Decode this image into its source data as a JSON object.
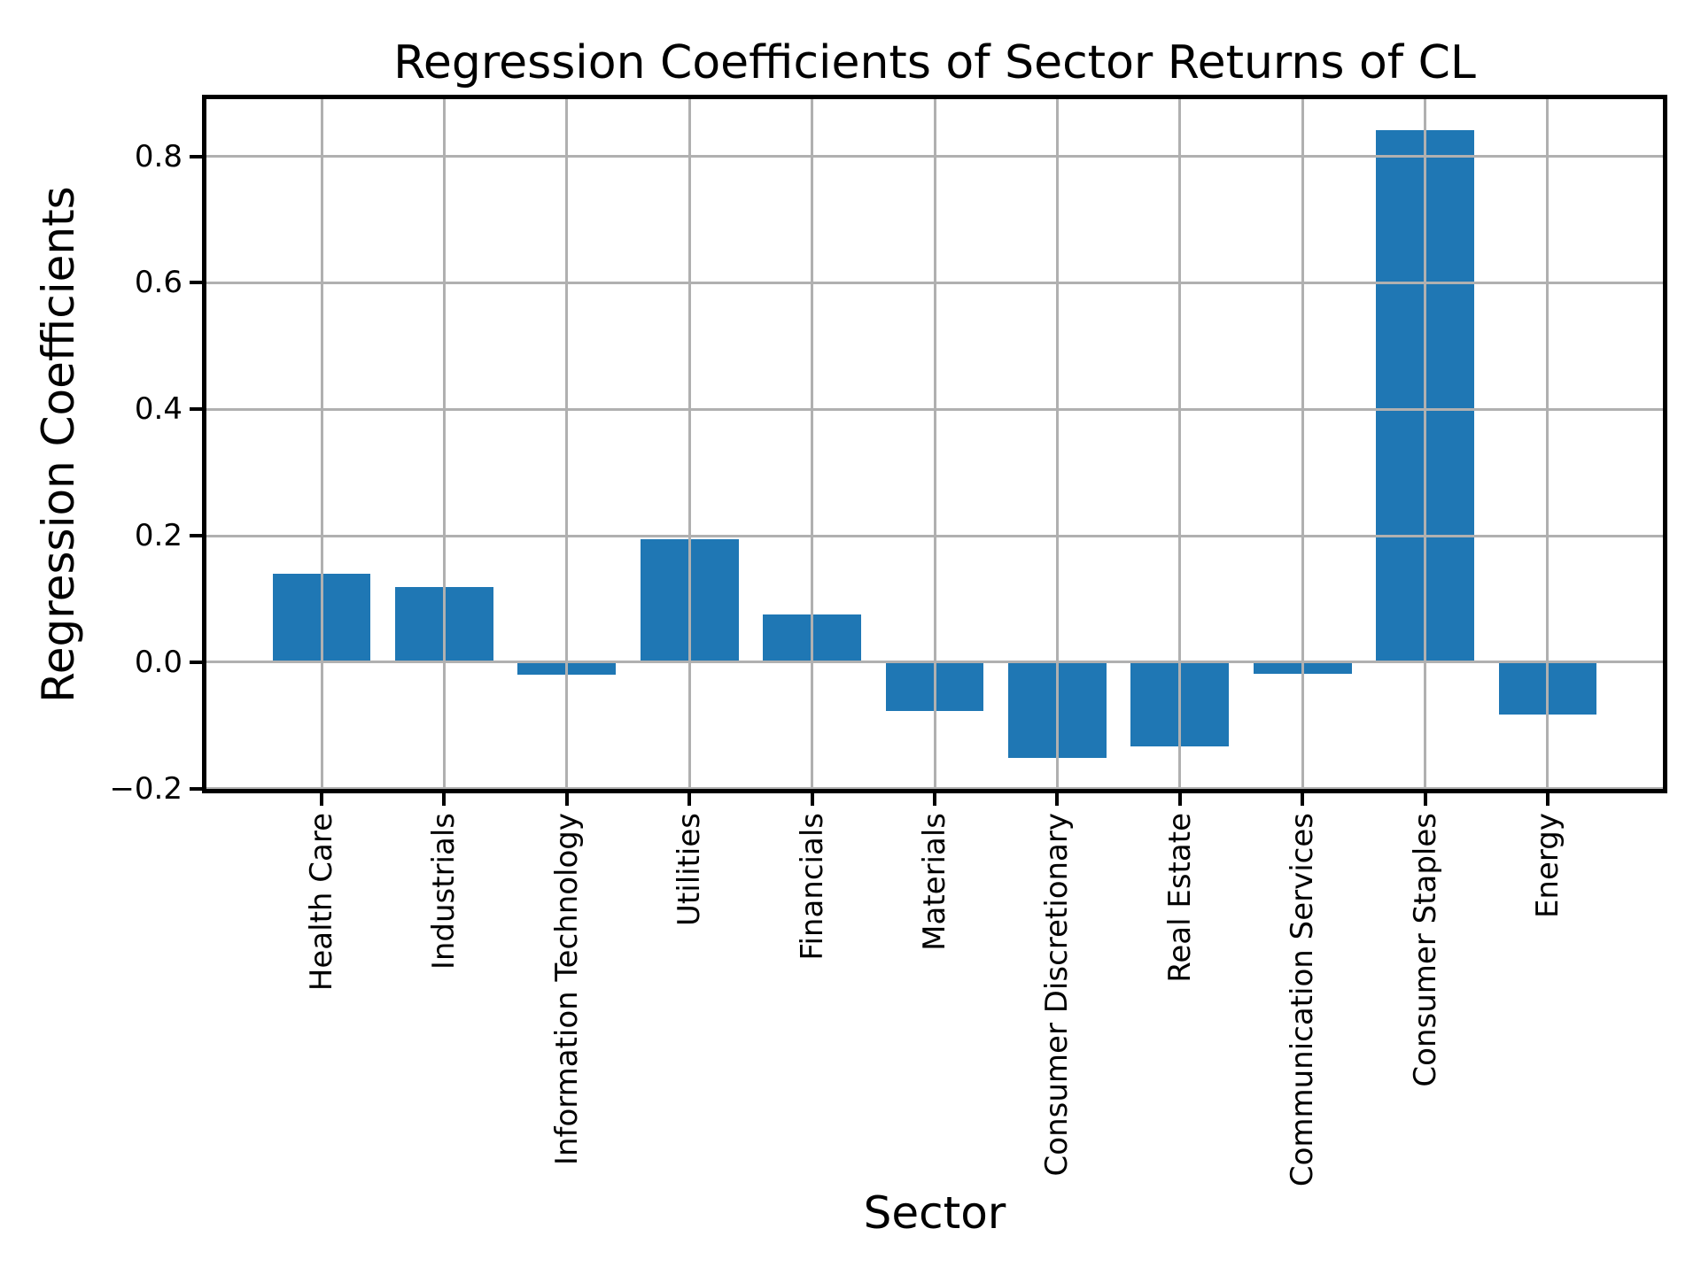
{
  "title": "Regression Coefficients of Sector Returns of CL",
  "chart_data": {
    "type": "bar",
    "title": "Regression Coefficients of Sector Returns of CL",
    "xlabel": "Sector",
    "ylabel": "Regression Coefficients",
    "categories": [
      "Health Care",
      "Industrials",
      "Information Technology",
      "Utilities",
      "Financials",
      "Materials",
      "Consumer Discretionary",
      "Real Estate",
      "Communication Services",
      "Consumer Staples",
      "Energy"
    ],
    "values": [
      0.14,
      0.119,
      -0.02,
      0.194,
      0.076,
      -0.077,
      -0.151,
      -0.133,
      -0.018,
      0.841,
      -0.083
    ],
    "yticks": [
      0.8,
      0.6,
      0.4,
      0.2,
      0.0,
      -0.2
    ],
    "ylim": [
      -0.2006,
      0.8906
    ],
    "grid": true,
    "legend": "none",
    "bar_color": "#1f77b4",
    "grid_color": "#b0b0b0",
    "axis_color": "#000000",
    "background_color": "#ffffff"
  }
}
